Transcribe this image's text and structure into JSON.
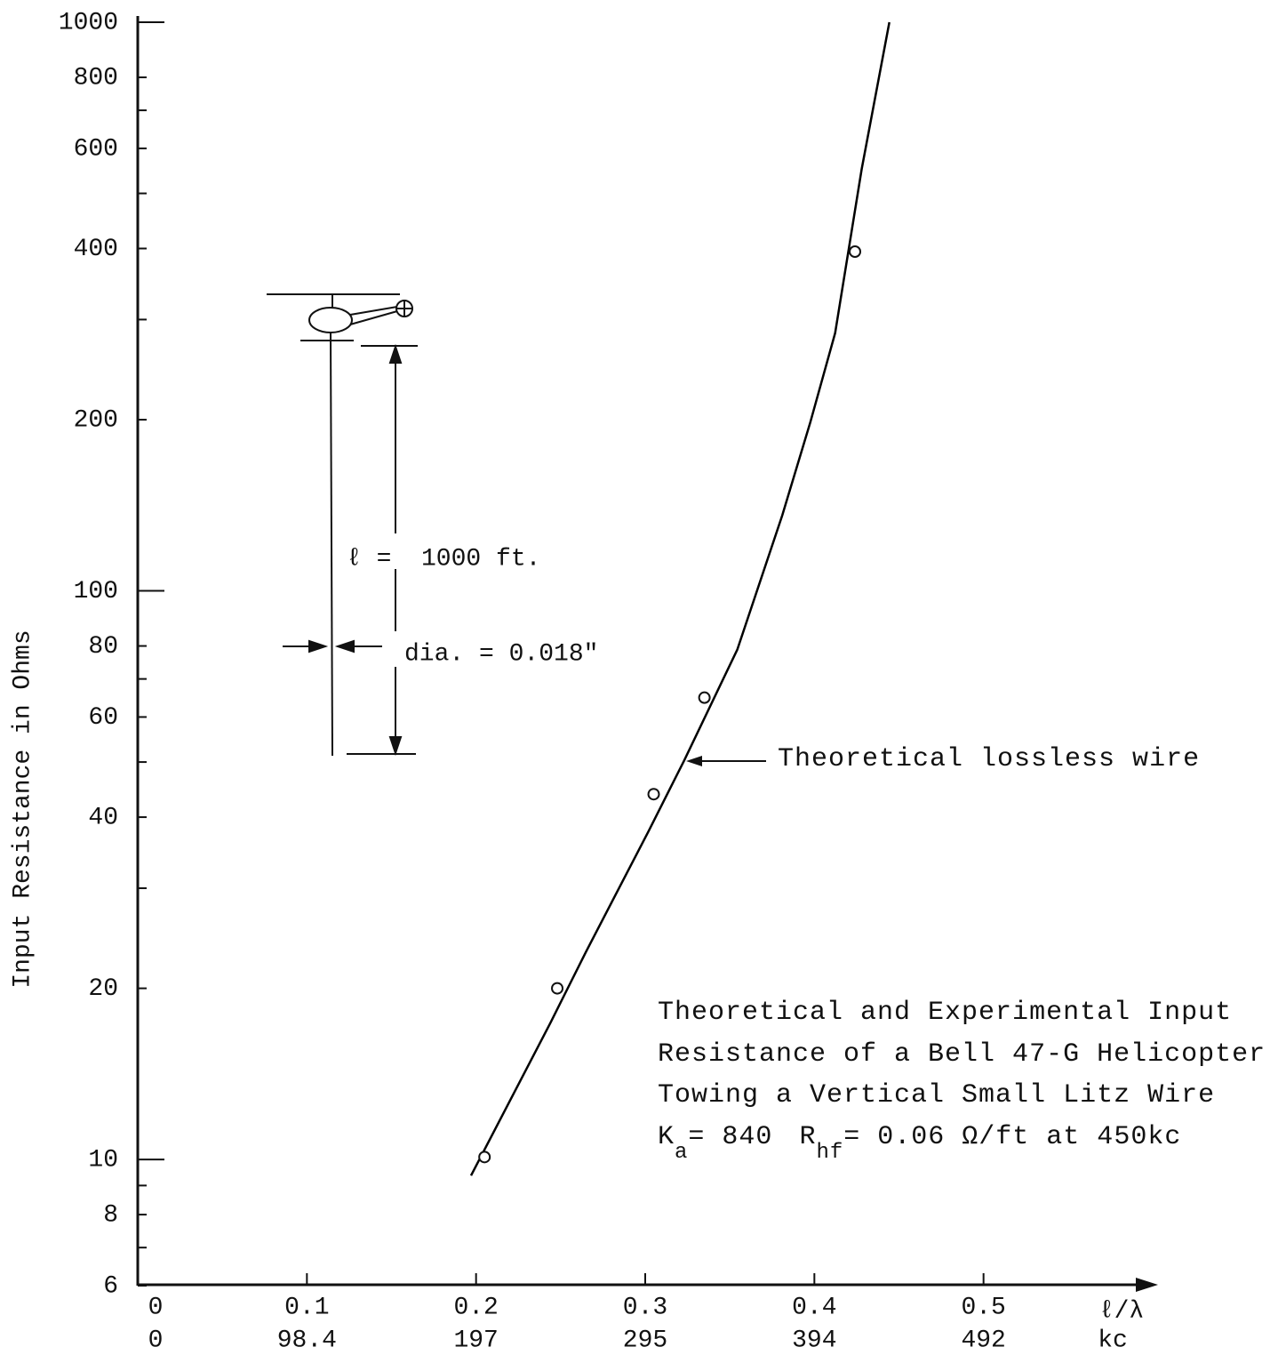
{
  "chart_data": {
    "type": "line",
    "y_label": "Input Resistance in Ohms",
    "x_label": "ℓ/λ",
    "x2_label": "kc",
    "xlim": [
      0,
      0.6
    ],
    "ylim": [
      6,
      1000
    ],
    "log_y": true,
    "xticks": [
      0,
      0.1,
      0.2,
      0.3,
      0.4,
      0.5
    ],
    "x2ticks": [
      0,
      98.4,
      197,
      295,
      394,
      492
    ],
    "yticks": [
      6,
      8,
      10,
      20,
      40,
      60,
      80,
      100,
      200,
      400,
      600,
      800,
      1000
    ],
    "yminor": [
      7,
      9,
      30,
      50,
      70,
      300,
      500,
      700
    ],
    "series": [
      {
        "name": "Theoretical lossless wire",
        "color": "#000000",
        "x": [
          0.197,
          0.244,
          0.265,
          0.302,
          0.323,
          0.3545,
          0.381,
          0.3976,
          0.4123,
          0.428,
          0.4443
        ],
        "values": [
          9.37,
          17.4,
          23.2,
          37.8,
          50.3,
          78.9,
          135.8,
          198,
          284,
          552,
          1000
        ]
      }
    ],
    "measured": {
      "x": [
        0.205,
        0.248,
        0.305,
        0.335,
        0.424
      ],
      "values": [
        10.1,
        20,
        43.9,
        64.9,
        395
      ]
    },
    "caption": [
      "Theoretical and Experimental Input",
      "Resistance of a Bell 47-G Helicopter",
      "Towing a Vertical Small Litz Wire"
    ],
    "formula": {
      "k": "K",
      "k_sub": "a",
      "k_value": "= 840",
      "r": "R",
      "r_sub": "hf",
      "r_value": "= 0.06 Ω/ft at 450kc"
    },
    "diagram": {
      "length_symbol": "ℓ =",
      "length_value": "1000 ft.",
      "diameter": "dia. = 0.018\""
    }
  }
}
